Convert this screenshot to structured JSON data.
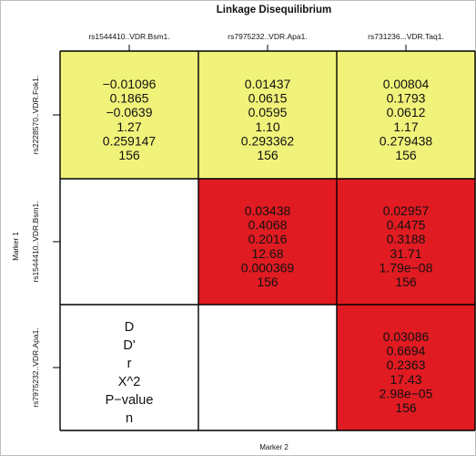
{
  "chart_data": {
    "type": "table",
    "title": "Linkage Disequilibrium",
    "xlabel": "Marker 2",
    "ylabel": "Marker 1",
    "columns": [
      "rs1544410..VDR.Bsm1.",
      "rs7975232..VDR.Apa1.",
      "rs731236...VDR.Taq1."
    ],
    "rows": [
      "rs2228570..VDR.Fok1.",
      "rs1544410..VDR.Bsm1.",
      "rs7975232..VDR.Apa1."
    ],
    "legend": [
      "D",
      "D'",
      "r",
      "X^2",
      "P−value",
      "n"
    ],
    "colors": {
      "yellow": "#f1f27a",
      "red": "#e11b22",
      "empty": "#ffffff"
    },
    "cells": [
      [
        {
          "color": "yellow",
          "values": [
            "−0.01096",
            "0.1865",
            "−0.0639",
            "1.27",
            "0.259147",
            "156"
          ]
        },
        {
          "color": "yellow",
          "values": [
            "0.01437",
            "0.0615",
            "0.0595",
            "1.10",
            "0.293362",
            "156"
          ]
        },
        {
          "color": "yellow",
          "values": [
            "0.00804",
            "0.1793",
            "0.0612",
            "1.17",
            "0.279438",
            "156"
          ]
        }
      ],
      [
        {
          "color": "empty",
          "values": []
        },
        {
          "color": "red",
          "values": [
            "0.03438",
            "0.4068",
            "0.2016",
            "12.68",
            "0.000369",
            "156"
          ]
        },
        {
          "color": "red",
          "values": [
            "0.02957",
            "0.4475",
            "0.3188",
            "31.71",
            "1.79e−08",
            "156"
          ]
        }
      ],
      [
        {
          "color": "empty",
          "legend": true,
          "values": []
        },
        {
          "color": "empty",
          "values": []
        },
        {
          "color": "red",
          "values": [
            "0.03086",
            "0.6694",
            "0.2363",
            "17.43",
            "2.98e−05",
            "156"
          ]
        }
      ]
    ]
  }
}
